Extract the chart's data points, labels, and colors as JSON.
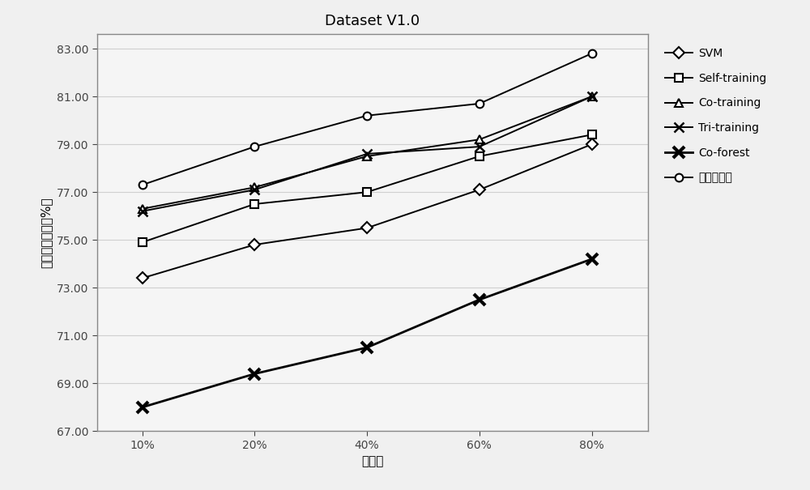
{
  "title": "Dataset V1.0",
  "xlabel": "抄样率",
  "ylabel": "平均分类精度（%）",
  "x_labels": [
    "10%",
    "20%",
    "40%",
    "60%",
    "80%"
  ],
  "x_values": [
    1,
    2,
    3,
    4,
    5
  ],
  "ylim": [
    67.0,
    83.6
  ],
  "yticks": [
    67.0,
    69.0,
    71.0,
    73.0,
    75.0,
    77.0,
    79.0,
    81.0,
    83.0
  ],
  "series": [
    {
      "label": "SVM",
      "values": [
        73.4,
        74.8,
        75.5,
        77.1,
        79.0
      ],
      "marker": "D",
      "markersize": 7,
      "linewidth": 1.4,
      "color": "#000000",
      "markerfacecolor": "white",
      "markeredgecolor": "#000000",
      "markeredgewidth": 1.5,
      "bold_marker": false
    },
    {
      "label": "Self-training",
      "values": [
        74.9,
        76.5,
        77.0,
        78.5,
        79.4
      ],
      "marker": "s",
      "markersize": 7,
      "linewidth": 1.4,
      "color": "#000000",
      "markerfacecolor": "white",
      "markeredgecolor": "#000000",
      "markeredgewidth": 1.5,
      "bold_marker": false
    },
    {
      "label": "Co-training",
      "values": [
        76.3,
        77.2,
        78.5,
        79.2,
        81.0
      ],
      "marker": "^",
      "markersize": 7,
      "linewidth": 1.4,
      "color": "#000000",
      "markerfacecolor": "white",
      "markeredgecolor": "#000000",
      "markeredgewidth": 1.5,
      "bold_marker": false
    },
    {
      "label": "Tri-training",
      "values": [
        76.2,
        77.1,
        78.6,
        78.9,
        81.0
      ],
      "marker": "x",
      "markersize": 8,
      "linewidth": 1.4,
      "color": "#000000",
      "markerfacecolor": "#000000",
      "markeredgecolor": "#000000",
      "markeredgewidth": 1.8,
      "bold_marker": false
    },
    {
      "label": "Co-forest",
      "values": [
        68.0,
        69.4,
        70.5,
        72.5,
        74.2
      ],
      "marker": "x",
      "markersize": 10,
      "linewidth": 2.0,
      "color": "#000000",
      "markerfacecolor": "#000000",
      "markeredgecolor": "#000000",
      "markeredgewidth": 3.0,
      "bold_marker": true
    },
    {
      "label": "本发明方法",
      "values": [
        77.3,
        78.9,
        80.2,
        80.7,
        82.8
      ],
      "marker": "o",
      "markersize": 7,
      "linewidth": 1.4,
      "color": "#000000",
      "markerfacecolor": "white",
      "markeredgecolor": "#000000",
      "markeredgewidth": 1.5,
      "bold_marker": false
    }
  ],
  "background_color": "#f0f0f0",
  "plot_bg_color": "#f5f5f5",
  "grid_color": "#d0d0d0",
  "border_color": "#888888",
  "title_fontsize": 13,
  "label_fontsize": 11,
  "tick_fontsize": 10,
  "legend_fontsize": 10
}
